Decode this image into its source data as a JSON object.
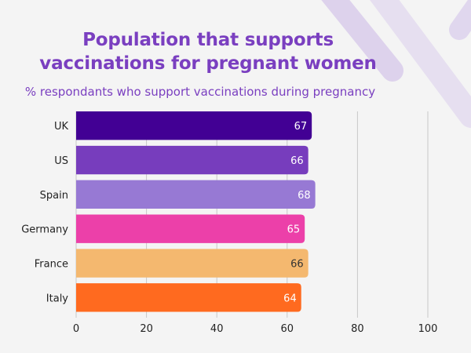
{
  "header": {
    "title_line1": "Population that supports",
    "title_line2": "vaccinations for pregnant women",
    "subtitle": "% respondants who support vaccinations during pregnancy"
  },
  "chart_data": {
    "type": "bar",
    "orientation": "horizontal",
    "title": "Population that supports vaccinations for pregnant women",
    "subtitle": "% respondants who support vaccinations during pregnancy",
    "categories": [
      "UK",
      "US",
      "Spain",
      "Germany",
      "France",
      "Italy"
    ],
    "values": [
      67,
      66,
      68,
      65,
      66,
      64
    ],
    "colors": [
      "#420094",
      "#773dbd",
      "#9779d4",
      "#ec40a9",
      "#f4b86f",
      "#ff6a1f"
    ],
    "label_colors": [
      "#ffffff",
      "#ffffff",
      "#ffffff",
      "#ffffff",
      "#333333",
      "#ffffff"
    ],
    "xlabel": "",
    "ylabel": "",
    "xlim": [
      0,
      100
    ],
    "xticks": [
      0,
      20,
      40,
      60,
      80,
      100
    ],
    "grid": true,
    "legend": "none"
  },
  "theme": {
    "title_color": "#7a3fc0",
    "background": "#f4f4f4",
    "decor_color": "#d9cdea"
  }
}
